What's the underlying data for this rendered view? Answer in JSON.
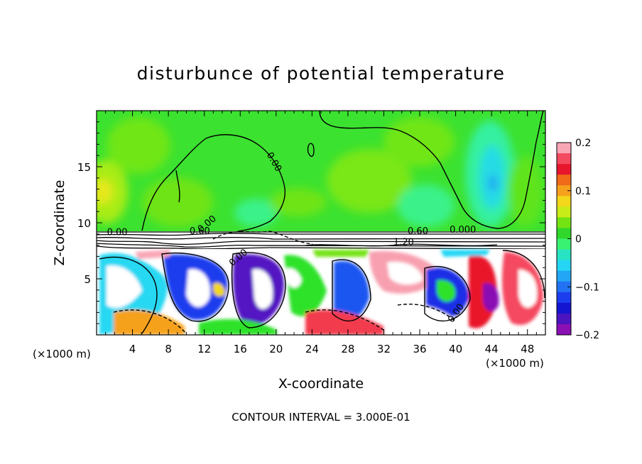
{
  "chart_data": {
    "type": "heatmap",
    "title": "disturbunce of potential temperature",
    "xlabel": "X-coordinate",
    "ylabel": "Z-coordinate",
    "x_unit_left": "(×1000 m)",
    "x_unit_right": "(×1000 m)",
    "xlim": [
      0,
      50
    ],
    "ylim": [
      0,
      20
    ],
    "x_ticks": [
      "4",
      "8",
      "12",
      "16",
      "20",
      "24",
      "28",
      "32",
      "36",
      "40",
      "44",
      "48"
    ],
    "x_tick_values": [
      4,
      8,
      12,
      16,
      20,
      24,
      28,
      32,
      36,
      40,
      44,
      48
    ],
    "y_ticks": [
      "5",
      "10",
      "15"
    ],
    "y_tick_values": [
      5,
      10,
      15
    ],
    "colorbar": {
      "min": -0.2,
      "max": 0.2,
      "tick_labels": [
        "0.2",
        "0.1",
        "0",
        "−0.1",
        "−0.2"
      ],
      "tick_values": [
        0.2,
        0.1,
        0,
        -0.1,
        -0.2
      ],
      "colors": [
        "#f9a6b5",
        "#f44a60",
        "#e8162c",
        "#f06a1a",
        "#f6a11c",
        "#f2d71b",
        "#c8ec17",
        "#74e312",
        "#2fd82a",
        "#3af271",
        "#27e3c3",
        "#24d6f4",
        "#23a6f5",
        "#2272f4",
        "#1c3ded",
        "#1415d0",
        "#4a14bf",
        "#8a10b3"
      ]
    },
    "contour_labels": [
      {
        "text": "0.00",
        "x": 19.5,
        "z": 15.3,
        "rotate": 60
      },
      {
        "text": "0.00",
        "x": 12.5,
        "z": 9.7,
        "rotate": -40
      },
      {
        "text": "0.00",
        "x": 2.3,
        "z": 8.9,
        "rotate": 0
      },
      {
        "text": "0.60",
        "x": 11.5,
        "z": 9.0,
        "rotate": 0
      },
      {
        "text": "0.60",
        "x": 35.8,
        "z": 9.0,
        "rotate": 0
      },
      {
        "text": "0.000",
        "x": 40.8,
        "z": 9.1,
        "rotate": 0
      },
      {
        "text": "1.20",
        "x": 34.2,
        "z": 8.0,
        "rotate": 0
      },
      {
        "text": "0.00",
        "x": 16.0,
        "z": 6.7,
        "rotate": -40
      },
      {
        "text": "0.00",
        "x": 40.3,
        "z": 1.8,
        "rotate": -55
      }
    ],
    "contour_interval_text": "CONTOUR INTERVAL = 3.000E-01"
  }
}
